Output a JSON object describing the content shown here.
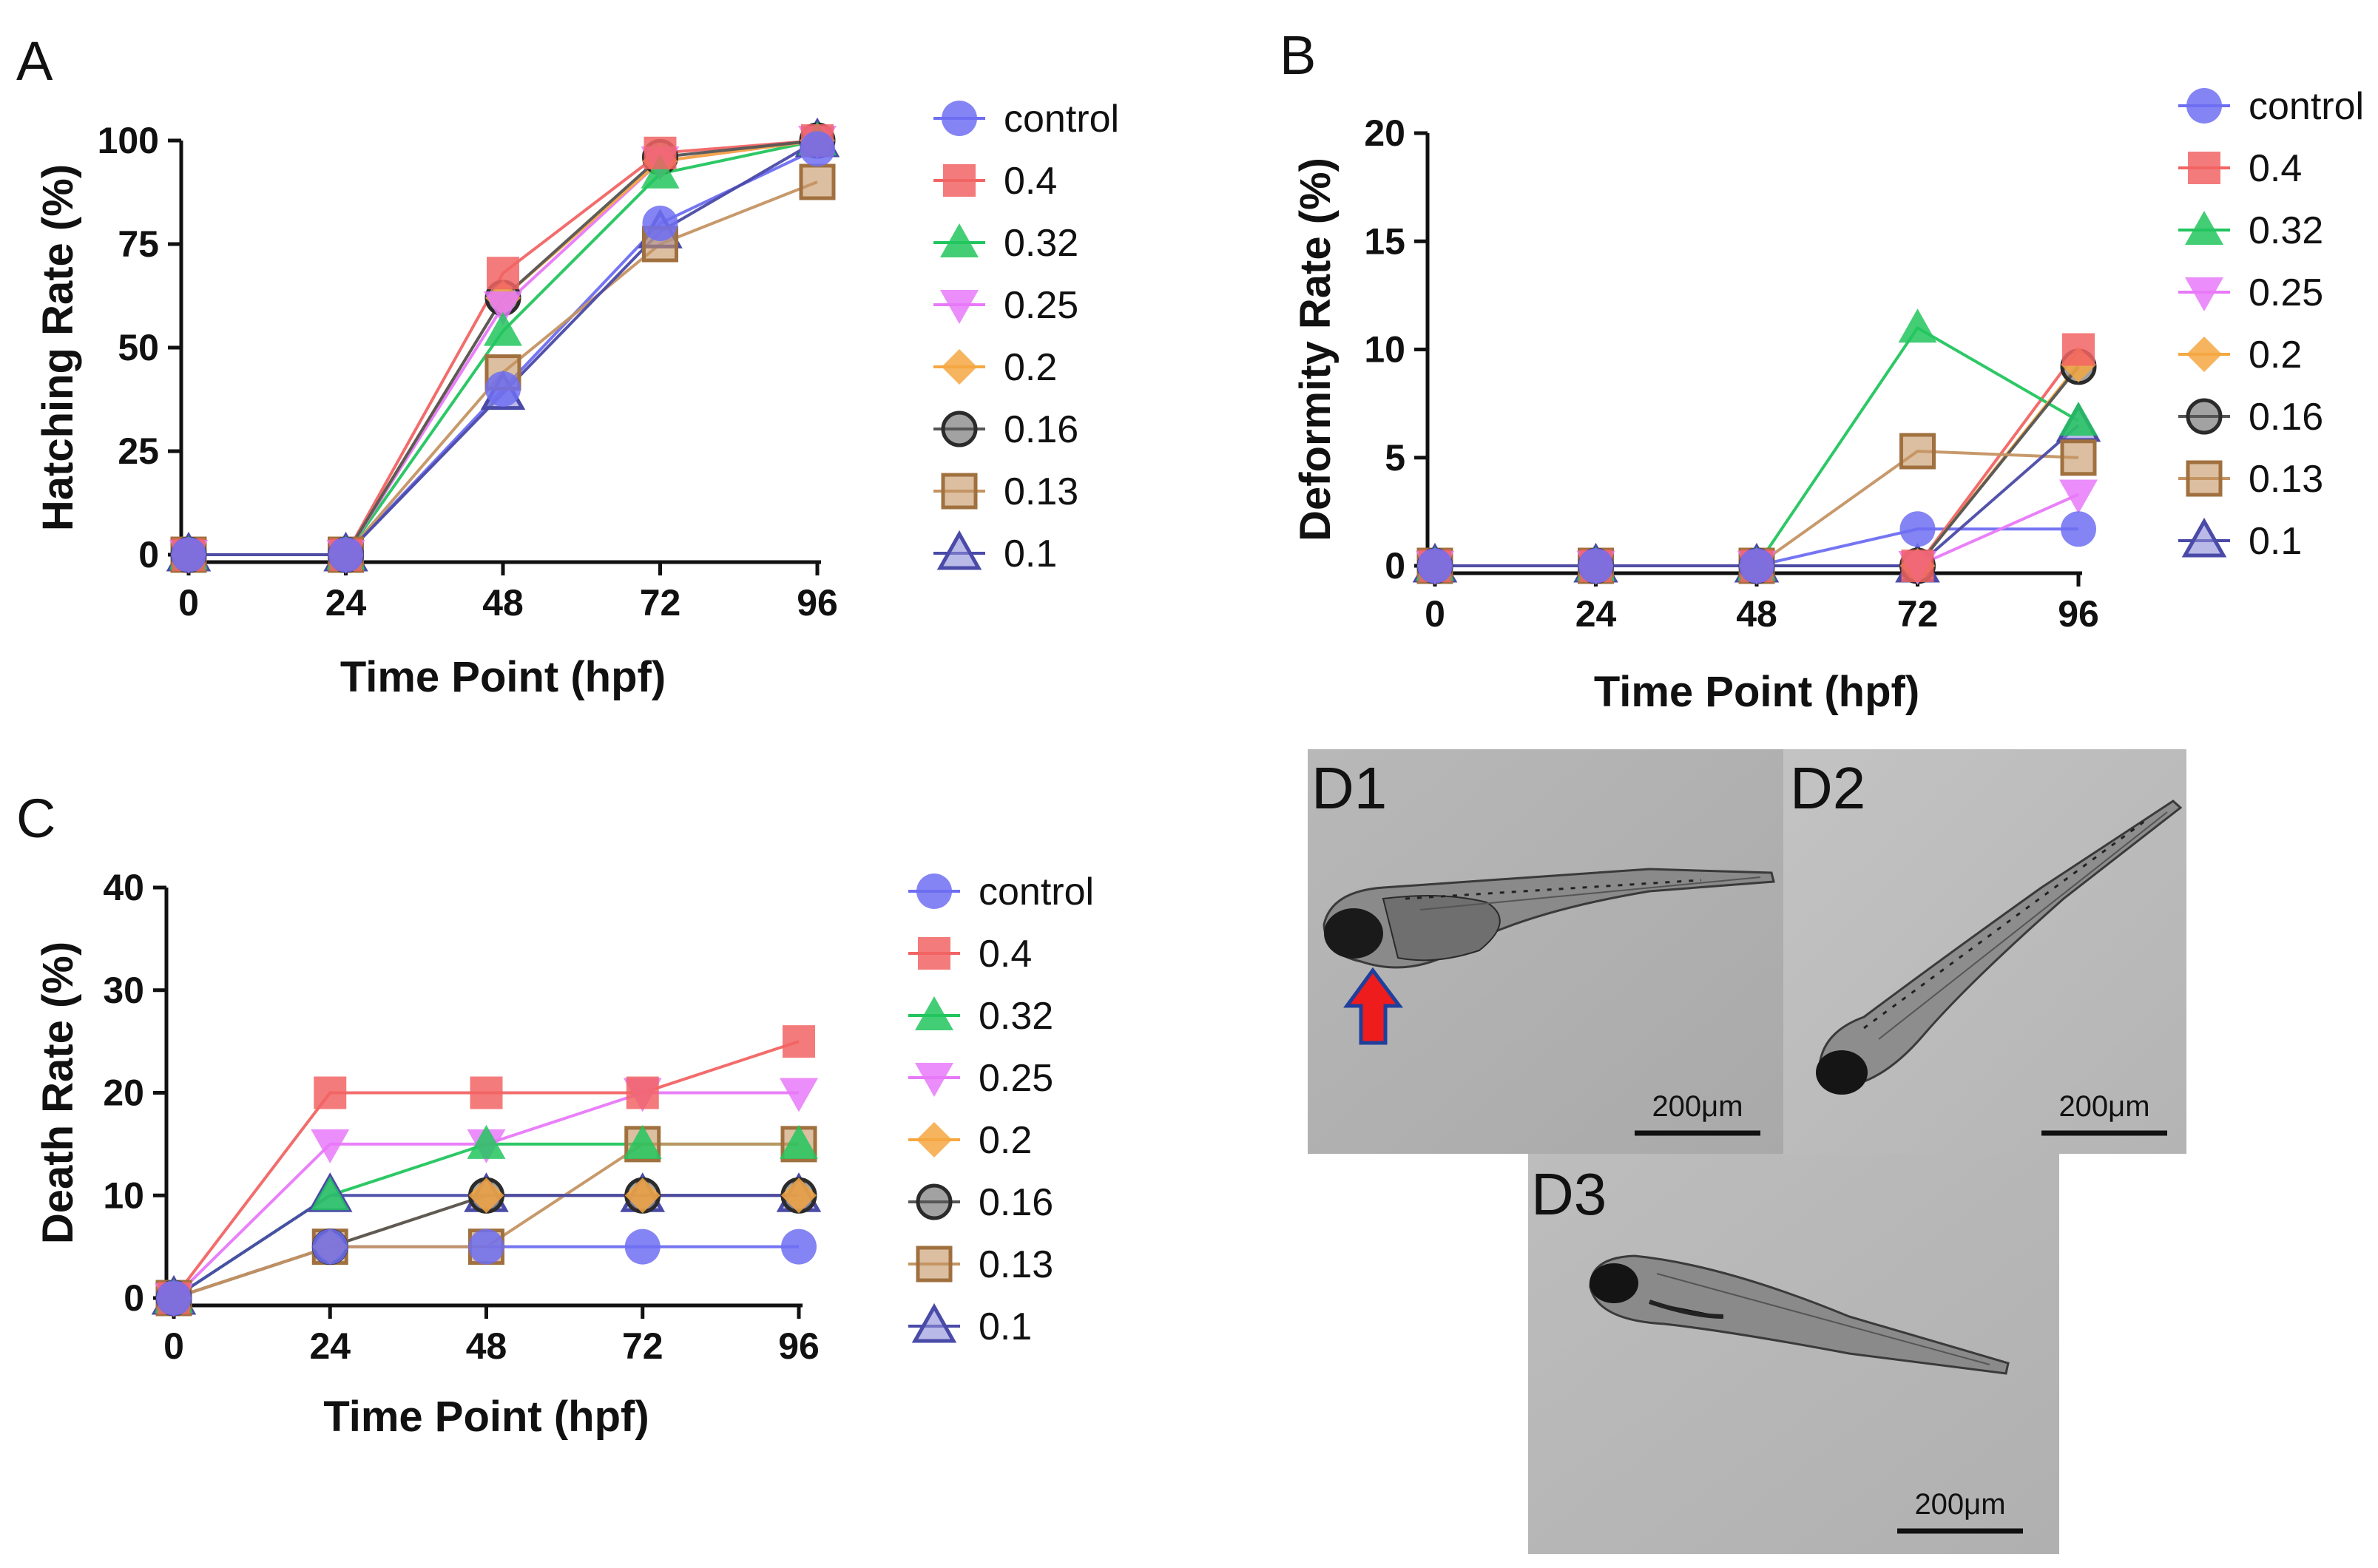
{
  "colors": {
    "control": "#6e6ef2",
    "0.4": "#f26464",
    "0.32": "#22c55e",
    "0.25": "#e879f9",
    "0.2": "#f5a742",
    "0.16": "#555555",
    "0.13": "#c49463",
    "0.1": "#4a4aa8",
    "arrow_fill": "#ee1c1c",
    "arrow_stroke": "#1f3f9c"
  },
  "legend": [
    "control",
    "0.4",
    "0.32",
    "0.25",
    "0.2",
    "0.16",
    "0.13",
    "0.1"
  ],
  "markers": {
    "control": "circle",
    "0.4": "square",
    "0.32": "triangle-up",
    "0.25": "triangle-down",
    "0.2": "diamond",
    "0.16": "circle-ring",
    "0.13": "square-ring",
    "0.1": "triangle-ring"
  },
  "chart_data": [
    {
      "panel": "A",
      "type": "line",
      "x": [
        0,
        24,
        48,
        72,
        96
      ],
      "xlabel": "Time Point (hpf)",
      "ylabel": "Hatching Rate (%)",
      "ylim": [
        0,
        100
      ],
      "yticks": [
        0,
        25,
        50,
        75,
        100
      ],
      "xticks": [
        0,
        24,
        48,
        72,
        96
      ],
      "legend_position": "right",
      "series": [
        {
          "name": "control",
          "values": [
            0,
            0,
            40,
            80,
            98
          ]
        },
        {
          "name": "0.4",
          "values": [
            0,
            0,
            68,
            97,
            100
          ]
        },
        {
          "name": "0.32",
          "values": [
            0,
            0,
            54,
            92,
            100
          ]
        },
        {
          "name": "0.25",
          "values": [
            0,
            0,
            60,
            95,
            100
          ]
        },
        {
          "name": "0.2",
          "values": [
            0,
            0,
            62,
            95,
            100
          ]
        },
        {
          "name": "0.16",
          "values": [
            0,
            0,
            62,
            96,
            100
          ]
        },
        {
          "name": "0.13",
          "values": [
            0,
            0,
            44,
            75,
            90
          ]
        },
        {
          "name": "0.1",
          "values": [
            0,
            0,
            39,
            78,
            100
          ]
        }
      ]
    },
    {
      "panel": "B",
      "type": "line",
      "x": [
        0,
        24,
        48,
        72,
        96
      ],
      "xlabel": "Time Point (hpf)",
      "ylabel": "Deformity Rate (%)",
      "ylim": [
        0,
        20
      ],
      "yticks": [
        0,
        5,
        10,
        15,
        20
      ],
      "xticks": [
        0,
        24,
        48,
        72,
        96
      ],
      "legend_position": "right",
      "series": [
        {
          "name": "control",
          "values": [
            0,
            0,
            0,
            1.7,
            1.7
          ]
        },
        {
          "name": "0.4",
          "values": [
            0,
            0,
            0,
            0,
            10
          ]
        },
        {
          "name": "0.32",
          "values": [
            0,
            0,
            0,
            11,
            6.7
          ]
        },
        {
          "name": "0.25",
          "values": [
            0,
            0,
            0,
            0,
            3.3
          ]
        },
        {
          "name": "0.2",
          "values": [
            0,
            0,
            0,
            0,
            9.3
          ]
        },
        {
          "name": "0.16",
          "values": [
            0,
            0,
            0,
            0,
            9.2
          ]
        },
        {
          "name": "0.13",
          "values": [
            0,
            0,
            0,
            5.3,
            5
          ]
        },
        {
          "name": "0.1",
          "values": [
            0,
            0,
            0,
            0,
            6.5
          ]
        }
      ]
    },
    {
      "panel": "C",
      "type": "line",
      "x": [
        0,
        24,
        48,
        72,
        96
      ],
      "xlabel": "Time Point (hpf)",
      "ylabel": "Death Rate (%)",
      "ylim": [
        0,
        40
      ],
      "yticks": [
        0,
        10,
        20,
        30,
        40
      ],
      "xticks": [
        0,
        24,
        48,
        72,
        96
      ],
      "legend_position": "right",
      "series": [
        {
          "name": "control",
          "values": [
            0,
            5,
            5,
            5,
            5
          ]
        },
        {
          "name": "0.4",
          "values": [
            0,
            20,
            20,
            20,
            25
          ]
        },
        {
          "name": "0.32",
          "values": [
            0,
            10,
            15,
            15,
            15
          ]
        },
        {
          "name": "0.25",
          "values": [
            0,
            15,
            15,
            20,
            20
          ]
        },
        {
          "name": "0.2",
          "values": [
            0,
            5,
            10,
            10,
            10
          ]
        },
        {
          "name": "0.16",
          "values": [
            0,
            5,
            10,
            10,
            10
          ]
        },
        {
          "name": "0.13",
          "values": [
            0,
            5,
            5,
            15,
            15
          ]
        },
        {
          "name": "0.1",
          "values": [
            0,
            10,
            10,
            10,
            10
          ]
        }
      ]
    }
  ],
  "panels": {
    "a": "A",
    "b": "B",
    "c": "C",
    "d1": "D1",
    "d2": "D2",
    "d3": "D3"
  },
  "scale_bar": "200μm"
}
